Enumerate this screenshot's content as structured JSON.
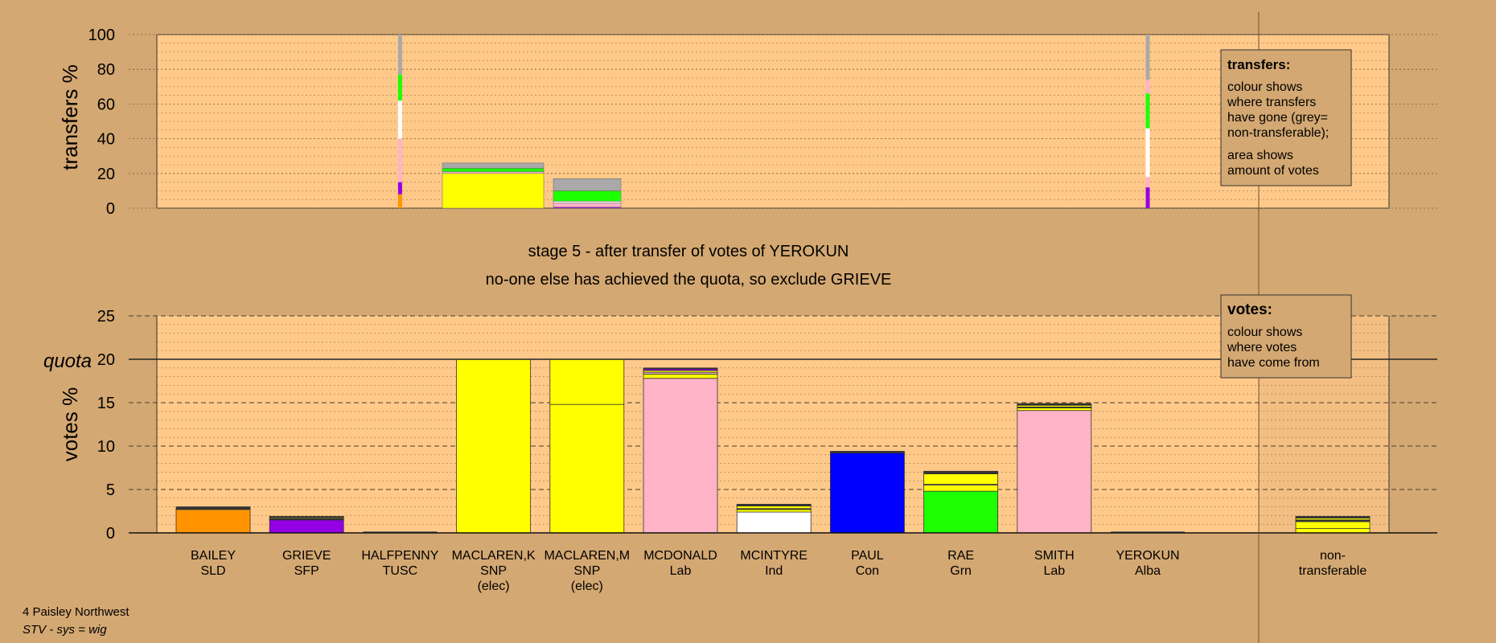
{
  "colors": {
    "page_bg": "#d4a872",
    "plot_bg": "#ffc98a",
    "SLD": "#ff9400",
    "SFP": "#9400e6",
    "TUSC": "#cc3333",
    "SNP": "#ffff00",
    "Lab": "#ffb3c6",
    "Ind": "#ffffff",
    "Con": "#0000ff",
    "Grn": "#1eff00",
    "Alba": "#8080ff",
    "nontransferable": "#a9a9a9",
    "dark": "#333333"
  },
  "titles": {
    "stage": "stage 5 - after transfer of votes of YEROKUN",
    "action": "no-one else has achieved the quota, so exclude GRIEVE"
  },
  "footer": {
    "constituency": "4 Paisley Northwest",
    "system": "STV - sys = wig"
  },
  "legend_transfers": {
    "heading": "transfers:",
    "lines1": [
      "colour shows",
      "where transfers",
      "have gone (grey=",
      "non-transferable);"
    ],
    "lines2": [
      "area shows",
      "amount of votes"
    ]
  },
  "legend_votes": {
    "heading": "votes:",
    "lines1": [
      "colour shows",
      "where votes",
      "have come from"
    ]
  },
  "chart_data": [
    {
      "type": "bar",
      "name": "transfers",
      "ylabel": "transfers %",
      "ylim": [
        0,
        100
      ],
      "yticks": [
        0,
        20,
        40,
        60,
        80,
        100
      ],
      "grid": true,
      "columns": [
        {
          "candidate": "HALFPENNY",
          "thin": true,
          "segments": [
            {
              "party": "SLD",
              "value": 8
            },
            {
              "party": "SFP",
              "value": 7
            },
            {
              "party": "Lab",
              "value": 25
            },
            {
              "party": "Ind",
              "value": 22
            },
            {
              "party": "Grn",
              "value": 15
            },
            {
              "party": "nontransferable",
              "value": 23
            }
          ]
        },
        {
          "candidate": "MACLAREN,K",
          "thin": false,
          "segments": [
            {
              "party": "SNP",
              "value": 20
            },
            {
              "party": "Lab",
              "value": 1
            },
            {
              "party": "Grn",
              "value": 2
            },
            {
              "party": "nontransferable",
              "value": 3
            }
          ]
        },
        {
          "candidate": "MACLAREN,M",
          "thin": false,
          "segments": [
            {
              "party": "SFP",
              "value": 0.6
            },
            {
              "party": "Lab",
              "value": 2.4
            },
            {
              "party": "Ind",
              "value": 1
            },
            {
              "party": "Grn",
              "value": 6
            },
            {
              "party": "nontransferable",
              "value": 7
            }
          ]
        },
        {
          "candidate": "YEROKUN",
          "thin": true,
          "segments": [
            {
              "party": "SFP",
              "value": 12
            },
            {
              "party": "Lab",
              "value": 6
            },
            {
              "party": "Ind",
              "value": 28
            },
            {
              "party": "Grn",
              "value": 20
            },
            {
              "party": "Lab",
              "value": 8
            },
            {
              "party": "nontransferable",
              "value": 26
            }
          ]
        }
      ]
    },
    {
      "type": "bar",
      "name": "votes",
      "ylabel": "votes %",
      "ylim": [
        0,
        25
      ],
      "yticks": [
        0,
        5,
        10,
        15,
        20,
        25
      ],
      "quota": 20,
      "quota_label": "quota",
      "grid": true,
      "categories": [
        {
          "name": "BAILEY",
          "party": "SLD",
          "elected": "",
          "segments": [
            {
              "party": "SLD",
              "value": 2.7
            },
            {
              "party": "dark",
              "value": 0.3
            }
          ]
        },
        {
          "name": "GRIEVE",
          "party": "SFP",
          "elected": "",
          "segments": [
            {
              "party": "SFP",
              "value": 1.5
            },
            {
              "party": "dark",
              "value": 0.2
            },
            {
              "party": "SNP",
              "value": 0.1
            },
            {
              "party": "dark",
              "value": 0.1
            }
          ]
        },
        {
          "name": "HALFPENNY",
          "party": "TUSC",
          "elected": "",
          "segments": []
        },
        {
          "name": "MACLAREN,K",
          "party": "SNP",
          "elected": "(elec)",
          "segments": [
            {
              "party": "SNP",
              "value": 20
            }
          ]
        },
        {
          "name": "MACLAREN,M",
          "party": "SNP",
          "elected": "(elec)",
          "segments": [
            {
              "party": "SNP",
              "value": 14.8
            },
            {
              "party": "SNP",
              "value": 5.2
            }
          ]
        },
        {
          "name": "MCDONALD",
          "party": "Lab",
          "elected": "",
          "segments": [
            {
              "party": "Lab",
              "value": 17.8
            },
            {
              "party": "SNP",
              "value": 0.5
            },
            {
              "party": "Lab",
              "value": 0.2
            },
            {
              "party": "SNP",
              "value": 0.2
            },
            {
              "party": "SFP",
              "value": 0.2
            },
            {
              "party": "dark",
              "value": 0.1
            }
          ]
        },
        {
          "name": "MCINTYRE",
          "party": "Ind",
          "elected": "",
          "segments": [
            {
              "party": "Ind",
              "value": 2.4
            },
            {
              "party": "SNP",
              "value": 0.3
            },
            {
              "party": "dark",
              "value": 0.1
            },
            {
              "party": "SNP",
              "value": 0.3
            },
            {
              "party": "dark",
              "value": 0.2
            }
          ]
        },
        {
          "name": "PAUL",
          "party": "Con",
          "elected": "",
          "segments": [
            {
              "party": "Con",
              "value": 9.2
            },
            {
              "party": "dark",
              "value": 0.2
            }
          ]
        },
        {
          "name": "RAE",
          "party": "Grn",
          "elected": "",
          "segments": [
            {
              "party": "Grn",
              "value": 4.8
            },
            {
              "party": "SNP",
              "value": 0.7
            },
            {
              "party": "Lab",
              "value": 0.1
            },
            {
              "party": "SNP",
              "value": 1.2
            },
            {
              "party": "dark",
              "value": 0.3
            }
          ]
        },
        {
          "name": "SMITH",
          "party": "Lab",
          "elected": "",
          "segments": [
            {
              "party": "Lab",
              "value": 14.1
            },
            {
              "party": "SNP",
              "value": 0.3
            },
            {
              "party": "dark",
              "value": 0.1
            },
            {
              "party": "SNP",
              "value": 0.2
            },
            {
              "party": "dark",
              "value": 0.2
            }
          ]
        },
        {
          "name": "YEROKUN",
          "party": "Alba",
          "elected": "",
          "segments": []
        }
      ],
      "nontransferable": {
        "label_lines": [
          "non-",
          "transferable"
        ],
        "segments": [
          {
            "party": "SNP",
            "value": 0.5
          },
          {
            "party": "SNP",
            "value": 0.8
          },
          {
            "party": "dark",
            "value": 0.2
          },
          {
            "party": "SNP",
            "value": 0.2
          },
          {
            "party": "dark",
            "value": 0.2
          }
        ]
      }
    }
  ]
}
